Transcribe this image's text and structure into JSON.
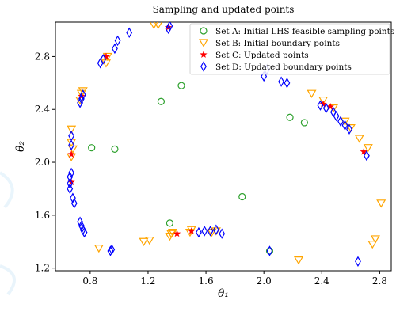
{
  "chart_data": {
    "type": "scatter",
    "title": "Sampling and updated points",
    "xlabel": "θ₁",
    "ylabel": "θ₂",
    "xlim": [
      0.56,
      2.88
    ],
    "ylim": [
      1.18,
      3.06
    ],
    "xticks": [
      0.8,
      1.2,
      1.6,
      2.0,
      2.4,
      2.8
    ],
    "yticks": [
      1.2,
      1.6,
      2.0,
      2.4,
      2.8
    ],
    "xtick_labels": [
      "0.8",
      "1.2",
      "1.6",
      "2.0",
      "2.4",
      "2.8"
    ],
    "ytick_labels": [
      "1.2",
      "1.6",
      "2.0",
      "2.4",
      "2.8"
    ],
    "grid": false,
    "legend_position": "top-right",
    "series": [
      {
        "name": "Set A: Initial LHS feasible sampling points",
        "marker": "circle",
        "color": "#2ca02c",
        "x": [
          0.81,
          0.97,
          1.29,
          1.43,
          1.35,
          1.85,
          2.04,
          2.18,
          2.28
        ],
        "y": [
          2.11,
          2.1,
          2.46,
          2.58,
          1.54,
          1.74,
          1.33,
          2.34,
          2.3
        ]
      },
      {
        "name": "Set B: Initial boundary points",
        "marker": "triangle-down",
        "color": "#ffa500",
        "x": [
          0.67,
          0.67,
          0.67,
          0.68,
          0.73,
          0.74,
          0.75,
          0.86,
          0.91,
          0.92,
          1.17,
          1.21,
          1.24,
          1.27,
          1.35,
          1.36,
          1.37,
          1.49,
          1.5,
          1.64,
          1.67,
          2.24,
          2.33,
          2.41,
          2.48,
          2.56,
          2.6,
          2.66,
          2.72,
          2.75,
          2.77,
          2.81
        ],
        "y": [
          2.04,
          2.15,
          2.25,
          2.1,
          2.47,
          2.52,
          2.54,
          1.35,
          2.75,
          2.8,
          1.4,
          1.41,
          3.04,
          3.04,
          1.44,
          1.46,
          1.47,
          1.47,
          1.49,
          1.47,
          1.48,
          1.26,
          2.52,
          2.47,
          2.41,
          2.31,
          2.26,
          2.18,
          2.11,
          1.38,
          1.42,
          1.69
        ]
      },
      {
        "name": "Set C: Updated points",
        "marker": "star",
        "color": "#ff0000",
        "x": [
          0.67,
          0.67,
          0.74,
          0.91,
          1.34,
          1.4,
          1.5,
          2.41,
          2.46,
          2.69
        ],
        "y": [
          1.85,
          2.06,
          2.5,
          2.8,
          3.02,
          1.46,
          1.48,
          2.44,
          2.42,
          2.08
        ]
      },
      {
        "name": "Set D: Updated boundary points",
        "marker": "diamond",
        "color": "#0000ff",
        "x": [
          0.66,
          0.66,
          0.66,
          0.67,
          0.67,
          0.67,
          0.68,
          0.69,
          0.73,
          0.74,
          0.75,
          0.76,
          0.73,
          0.74,
          0.75,
          0.87,
          0.89,
          0.94,
          0.95,
          0.97,
          0.99,
          1.07,
          1.34,
          1.35,
          1.55,
          1.59,
          1.63,
          1.67,
          1.71,
          2.0,
          2.02,
          2.04,
          2.12,
          2.16,
          2.39,
          2.43,
          2.48,
          2.5,
          2.53,
          2.56,
          2.59,
          2.65,
          2.71
        ],
        "y": [
          1.89,
          1.84,
          1.8,
          1.92,
          2.2,
          2.13,
          1.73,
          1.69,
          1.55,
          1.52,
          1.49,
          1.47,
          2.45,
          2.48,
          2.51,
          2.75,
          2.78,
          1.33,
          1.34,
          2.86,
          2.92,
          2.98,
          3.01,
          3.03,
          1.47,
          1.48,
          1.48,
          1.49,
          1.46,
          2.65,
          2.7,
          1.33,
          2.61,
          2.6,
          2.43,
          2.41,
          2.38,
          2.35,
          2.31,
          2.28,
          2.25,
          1.25,
          2.05
        ]
      }
    ]
  },
  "watermark_icon": "swirl-logo-icon"
}
